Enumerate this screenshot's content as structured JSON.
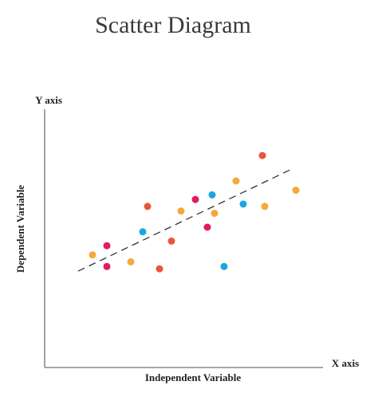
{
  "chart_data": {
    "type": "scatter",
    "title": "Scatter Diagram",
    "xlabel": "Independent Variable",
    "ylabel": "Dependent Variable",
    "x_axis_end_label": "X axis",
    "y_axis_end_label": "Y axis",
    "xlim": [
      0,
      100
    ],
    "ylim": [
      0,
      100
    ],
    "grid": false,
    "legend": "none",
    "trendline": {
      "style": "dashed",
      "color": "#333333",
      "from": [
        10,
        31
      ],
      "to": [
        99,
        75
      ]
    },
    "points": [
      {
        "x": 16,
        "y": 38,
        "color": "#f5a93b"
      },
      {
        "x": 22,
        "y": 42,
        "color": "#e31b5c"
      },
      {
        "x": 22,
        "y": 33,
        "color": "#e31b5c"
      },
      {
        "x": 32,
        "y": 35,
        "color": "#f5a93b"
      },
      {
        "x": 37,
        "y": 48,
        "color": "#1aa7e0"
      },
      {
        "x": 39,
        "y": 59,
        "color": "#e8573a"
      },
      {
        "x": 44,
        "y": 32,
        "color": "#e8573a"
      },
      {
        "x": 49,
        "y": 44,
        "color": "#e8573a"
      },
      {
        "x": 53,
        "y": 57,
        "color": "#f5a93b"
      },
      {
        "x": 59,
        "y": 62,
        "color": "#e31b5c"
      },
      {
        "x": 64,
        "y": 50,
        "color": "#e31b5c"
      },
      {
        "x": 66,
        "y": 64,
        "color": "#1aa7e0"
      },
      {
        "x": 67,
        "y": 56,
        "color": "#f5a93b"
      },
      {
        "x": 71,
        "y": 33,
        "color": "#1aa7e0"
      },
      {
        "x": 76,
        "y": 70,
        "color": "#f5a93b"
      },
      {
        "x": 79,
        "y": 60,
        "color": "#1aa7e0"
      },
      {
        "x": 87,
        "y": 81,
        "color": "#e8573a"
      },
      {
        "x": 88,
        "y": 59,
        "color": "#f5a93b"
      },
      {
        "x": 101,
        "y": 66,
        "color": "#f5a93b"
      }
    ]
  }
}
